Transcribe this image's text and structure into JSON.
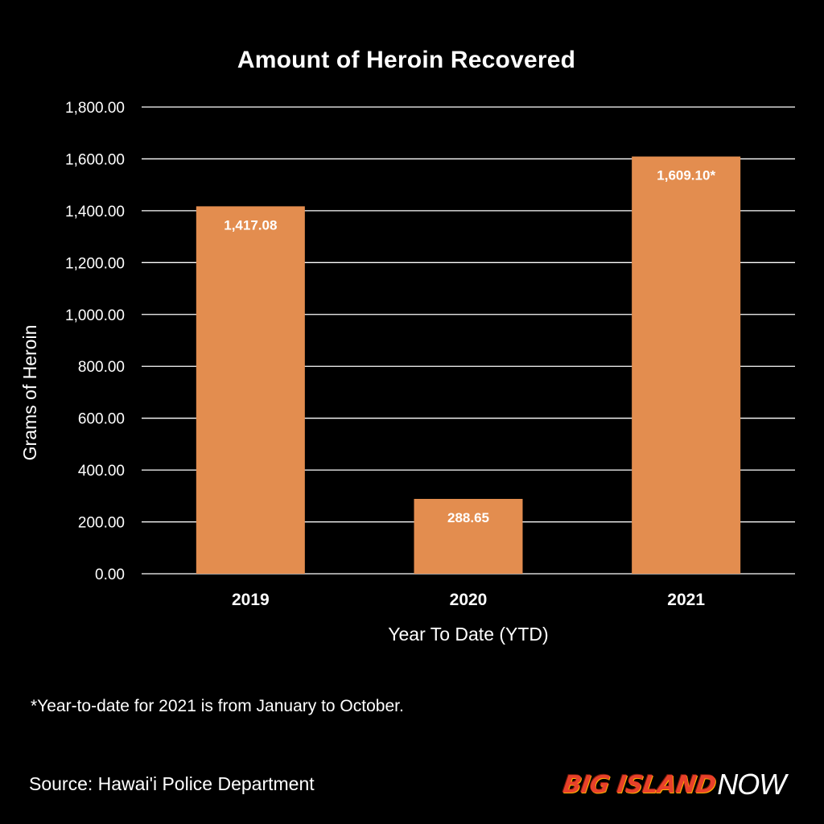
{
  "chart_data": {
    "type": "bar",
    "title": "Amount of Heroin Recovered",
    "xlabel": "Year To Date (YTD)",
    "ylabel": "Grams of Heroin",
    "categories": [
      "2019",
      "2020",
      "2021"
    ],
    "values": [
      1417.08,
      288.65,
      1609.1
    ],
    "data_labels": [
      "1,417.08",
      "288.65",
      "1,609.10*"
    ],
    "ylim": [
      0,
      1800
    ],
    "yticks": [
      "0.00",
      "200.00",
      "400.00",
      "600.00",
      "800.00",
      "1,000.00",
      "1,200.00",
      "1,400.00",
      "1,600.00",
      "1,800.00"
    ],
    "ytick_values": [
      0,
      200,
      400,
      600,
      800,
      1000,
      1200,
      1400,
      1600,
      1800
    ],
    "grid": true,
    "bar_color": "#e38d4f",
    "background": "#000000"
  },
  "footnote": "*Year-to-date for 2021 is from January to October.",
  "source": "Source: Hawai'i Police Department",
  "logo": {
    "part1": "BIG ISLAND",
    "part2": "NOW"
  }
}
